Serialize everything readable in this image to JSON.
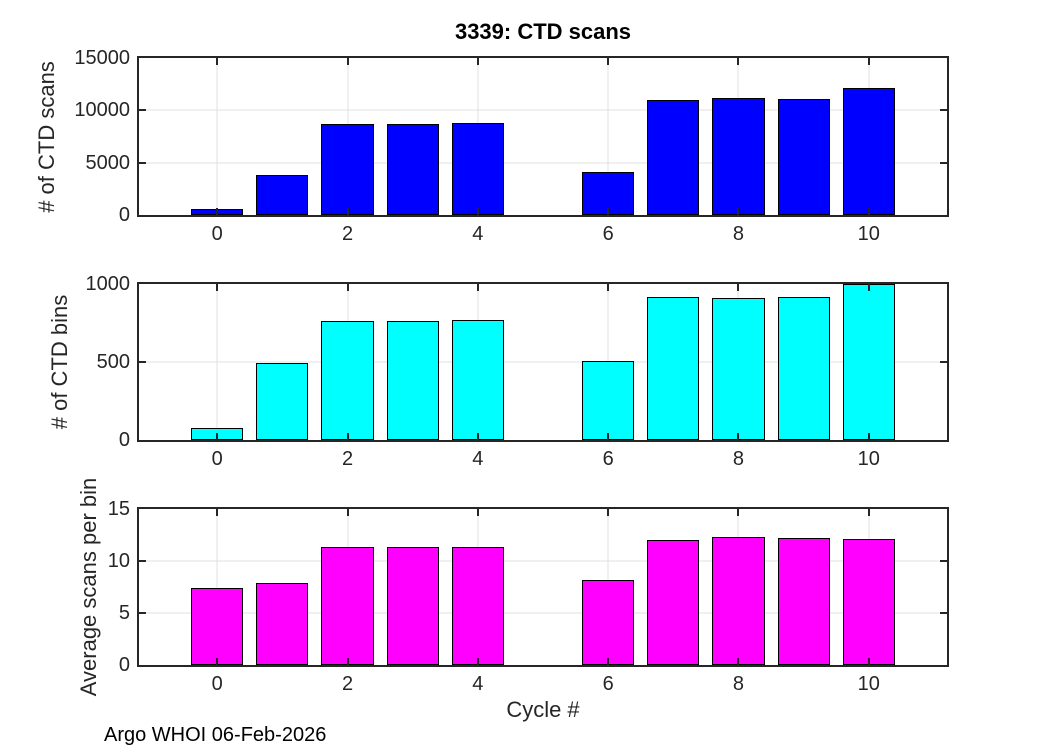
{
  "figure": {
    "title": "3339: CTD scans",
    "xlabel": "Cycle #",
    "footer": "Argo WHOI 06-Feb-2026",
    "background": "#ffffff"
  },
  "colors": {
    "axis": "#262626",
    "grid": "#e0e0e0",
    "bar_edge": "#000000",
    "scans_bar": "#0000ff",
    "bins_bar": "#00ffff",
    "avg_bar": "#ff00ff"
  },
  "chart_data": [
    {
      "type": "bar",
      "name": "ctd-scans",
      "ylabel": "# of CTD scans",
      "x": [
        0,
        1,
        2,
        3,
        4,
        6,
        7,
        8,
        9,
        10
      ],
      "values": [
        590,
        3850,
        8650,
        8650,
        8750,
        4150,
        11000,
        11200,
        11100,
        12100
      ],
      "bar_color": "#0000ff",
      "bar_width": 0.8,
      "xlim": [
        -1.2,
        11.2
      ],
      "ylim": [
        0,
        15000
      ],
      "xticks": [
        0,
        2,
        4,
        6,
        8,
        10
      ],
      "yticks": [
        0,
        5000,
        10000,
        15000
      ],
      "grid": true
    },
    {
      "type": "bar",
      "name": "ctd-bins",
      "ylabel": "# of CTD bins",
      "x": [
        0,
        1,
        2,
        3,
        4,
        6,
        7,
        8,
        9,
        10
      ],
      "values": [
        80,
        495,
        765,
        765,
        770,
        505,
        915,
        910,
        915,
        1000
      ],
      "bar_color": "#00ffff",
      "bar_width": 0.8,
      "xlim": [
        -1.2,
        11.2
      ],
      "ylim": [
        0,
        1000
      ],
      "xticks": [
        0,
        2,
        4,
        6,
        8,
        10
      ],
      "yticks": [
        0,
        500,
        1000
      ],
      "grid": true
    },
    {
      "type": "bar",
      "name": "avg-scans-per-bin",
      "ylabel": "Average scans per bin",
      "x": [
        0,
        1,
        2,
        3,
        4,
        6,
        7,
        8,
        9,
        10
      ],
      "values": [
        7.4,
        7.9,
        11.3,
        11.3,
        11.3,
        8.2,
        12.0,
        12.3,
        12.2,
        12.1
      ],
      "bar_color": "#ff00ff",
      "bar_width": 0.8,
      "xlim": [
        -1.2,
        11.2
      ],
      "ylim": [
        0,
        15
      ],
      "xticks": [
        0,
        2,
        4,
        6,
        8,
        10
      ],
      "yticks": [
        0,
        5,
        10,
        15
      ],
      "grid": true
    }
  ]
}
